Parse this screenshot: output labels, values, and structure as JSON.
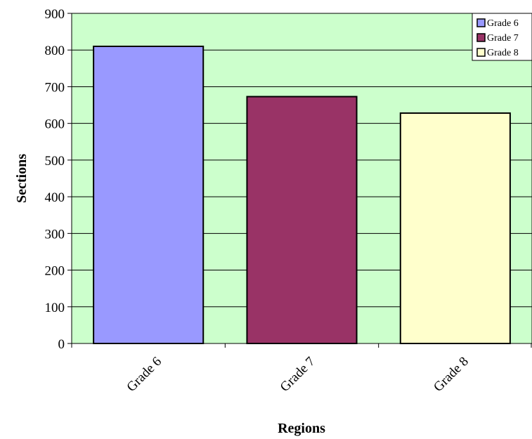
{
  "chart_data": {
    "type": "bar",
    "title": "",
    "xlabel": "Regions",
    "ylabel": "Sections",
    "categories": [
      "Grade 6",
      "Grade 7",
      "Grade 8"
    ],
    "values": [
      810,
      673,
      628
    ],
    "ylim": [
      0,
      900
    ],
    "yticks": [
      0,
      100,
      200,
      300,
      400,
      500,
      600,
      700,
      800,
      900
    ],
    "grid": true,
    "legend": {
      "position": "top-right",
      "entries": [
        "Grade 6",
        "Grade 7",
        "Grade 8"
      ]
    },
    "colors": [
      "#9999ff",
      "#993366",
      "#ffffcc"
    ],
    "plot_background": "#ccffcc"
  }
}
